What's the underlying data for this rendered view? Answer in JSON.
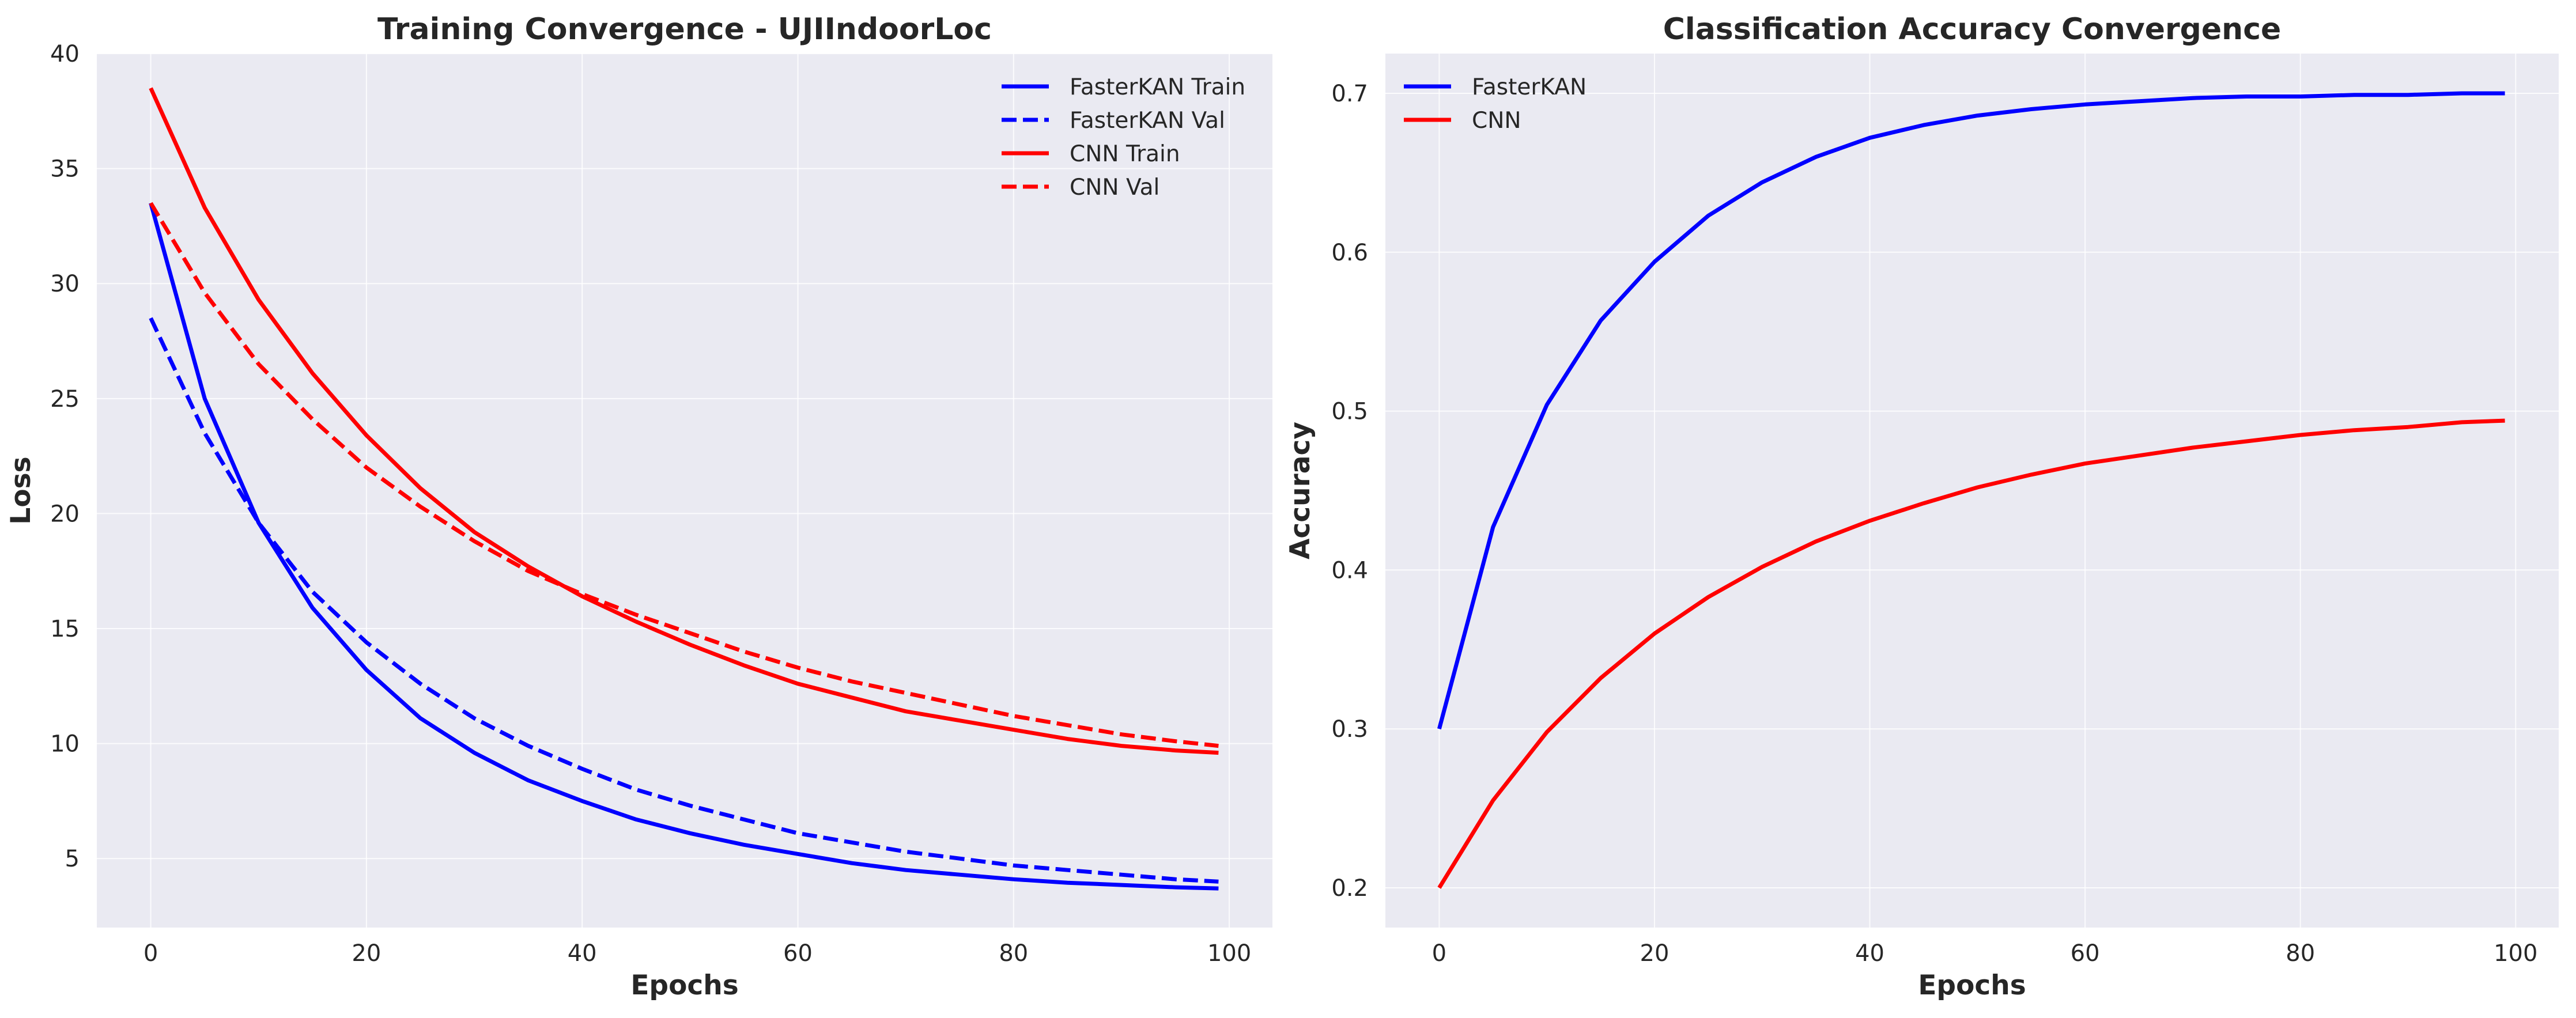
{
  "chart_data": [
    {
      "type": "line",
      "title": "Training Convergence - UJIIndoorLoc",
      "xlabel": "Epochs",
      "ylabel": "Loss",
      "xlim": [
        -5,
        104
      ],
      "ylim": [
        2,
        40
      ],
      "xticks": [
        0,
        20,
        40,
        60,
        80,
        100
      ],
      "yticks": [
        5,
        10,
        15,
        20,
        25,
        30,
        35,
        40
      ],
      "grid": true,
      "legend_position": "top-right",
      "x": [
        0,
        5,
        10,
        15,
        20,
        25,
        30,
        35,
        40,
        45,
        50,
        55,
        60,
        65,
        70,
        75,
        80,
        85,
        90,
        95,
        99
      ],
      "series": [
        {
          "name": "FasterKAN Train",
          "color": "#0000ff",
          "dash": "solid",
          "values": [
            33.5,
            25.0,
            19.6,
            15.9,
            13.2,
            11.1,
            9.6,
            8.4,
            7.5,
            6.7,
            6.1,
            5.6,
            5.2,
            4.8,
            4.5,
            4.3,
            4.1,
            3.95,
            3.85,
            3.75,
            3.7
          ]
        },
        {
          "name": "FasterKAN Val",
          "color": "#0000ff",
          "dash": "dashed",
          "values": [
            28.5,
            23.5,
            19.6,
            16.6,
            14.4,
            12.6,
            11.1,
            9.9,
            8.9,
            8.0,
            7.3,
            6.7,
            6.1,
            5.7,
            5.3,
            5.0,
            4.7,
            4.5,
            4.3,
            4.1,
            4.0
          ]
        },
        {
          "name": "CNN Train",
          "color": "#ff0000",
          "dash": "solid",
          "values": [
            38.5,
            33.3,
            29.3,
            26.1,
            23.4,
            21.1,
            19.2,
            17.7,
            16.4,
            15.3,
            14.3,
            13.4,
            12.6,
            12.0,
            11.4,
            11.0,
            10.6,
            10.2,
            9.9,
            9.7,
            9.6
          ]
        },
        {
          "name": "CNN Val",
          "color": "#ff0000",
          "dash": "dashed",
          "values": [
            33.5,
            29.6,
            26.5,
            24.1,
            22.0,
            20.3,
            18.8,
            17.5,
            16.5,
            15.6,
            14.8,
            14.0,
            13.3,
            12.7,
            12.2,
            11.7,
            11.2,
            10.8,
            10.4,
            10.1,
            9.9
          ]
        }
      ]
    },
    {
      "type": "line",
      "title": "Classification Accuracy Convergence",
      "xlabel": "Epochs",
      "ylabel": "Accuracy",
      "xlim": [
        -5,
        104
      ],
      "ylim": [
        0.175,
        0.725
      ],
      "xticks": [
        0,
        20,
        40,
        60,
        80,
        100
      ],
      "yticks": [
        0.2,
        0.3,
        0.4,
        0.5,
        0.6,
        0.7
      ],
      "grid": true,
      "legend_position": "top-left",
      "x": [
        0,
        5,
        10,
        15,
        20,
        25,
        30,
        35,
        40,
        45,
        50,
        55,
        60,
        65,
        70,
        75,
        80,
        85,
        90,
        95,
        99
      ],
      "series": [
        {
          "name": "FasterKAN",
          "color": "#0000ff",
          "dash": "solid",
          "values": [
            0.3,
            0.427,
            0.504,
            0.557,
            0.594,
            0.623,
            0.644,
            0.66,
            0.672,
            0.68,
            0.686,
            0.69,
            0.693,
            0.695,
            0.697,
            0.698,
            0.698,
            0.699,
            0.699,
            0.7,
            0.7
          ]
        },
        {
          "name": "CNN",
          "color": "#ff0000",
          "dash": "solid",
          "values": [
            0.2,
            0.255,
            0.298,
            0.332,
            0.36,
            0.383,
            0.402,
            0.418,
            0.431,
            0.442,
            0.452,
            0.46,
            0.467,
            0.472,
            0.477,
            0.481,
            0.485,
            0.488,
            0.49,
            0.493,
            0.494
          ]
        }
      ]
    }
  ]
}
